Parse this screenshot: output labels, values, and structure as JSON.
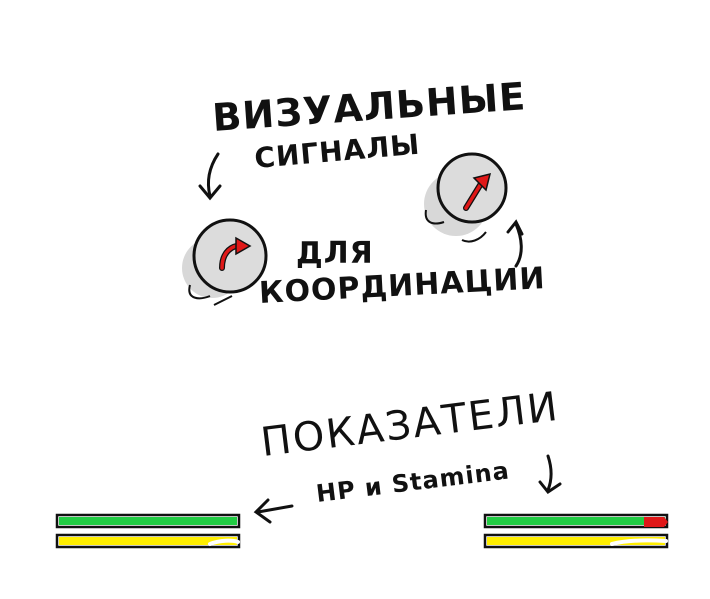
{
  "labels": {
    "heading1_line1": "ВИЗУАЛЬНЫЕ",
    "heading1_line2": "СИГНАЛЫ",
    "heading2_line1": "ДЛЯ",
    "heading2_line2": "КООРДИНАЦИИ",
    "heading3_line1": "ПОКАЗАТЕЛИ",
    "heading3_line2": "НР и Stamina"
  },
  "bars": {
    "left": {
      "hp": 1.0,
      "stamina": 1.0
    },
    "right": {
      "hp": 1.0,
      "stamina": 1.0
    }
  },
  "colors": {
    "hp": "#22cc44",
    "stamina": "#ffee00",
    "arrow": "#e01818",
    "joystick": "#d6d6d6"
  }
}
